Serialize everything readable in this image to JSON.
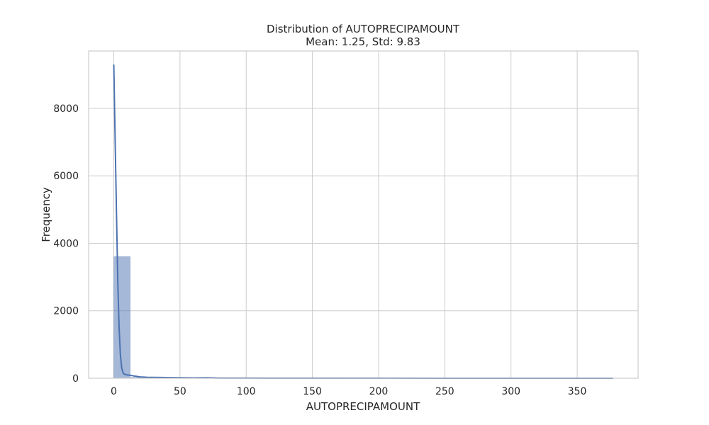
{
  "chart_data": {
    "type": "bar",
    "title": "Distribution of AUTOPRECIPAMOUNT",
    "subtitle": "Mean: 1.25, Std: 9.83",
    "xlabel": "AUTOPRECIPAMOUNT",
    "ylabel": "Frequency",
    "xlim": [
      -19,
      396
    ],
    "ylim": [
      0,
      9700
    ],
    "xticks": [
      0,
      50,
      100,
      150,
      200,
      250,
      300,
      350
    ],
    "yticks": [
      0,
      2000,
      4000,
      6000,
      8000
    ],
    "grid": true,
    "bar_color": "#4c72b0",
    "bar_opacity": 0.5,
    "bins": [
      {
        "x0": 0,
        "x1": 12.5,
        "count": 3610
      },
      {
        "x0": 12.5,
        "x1": 25,
        "count": 30
      },
      {
        "x0": 25,
        "x1": 37.5,
        "count": 12
      },
      {
        "x0": 37.5,
        "x1": 50,
        "count": 8
      },
      {
        "x0": 50,
        "x1": 62.5,
        "count": 6
      },
      {
        "x0": 62.5,
        "x1": 75,
        "count": 5
      },
      {
        "x0": 75,
        "x1": 87.5,
        "count": 3
      },
      {
        "x0": 87.5,
        "x1": 100,
        "count": 2
      },
      {
        "x0": 100,
        "x1": 112.5,
        "count": 2
      },
      {
        "x0": 112.5,
        "x1": 125,
        "count": 1
      },
      {
        "x0": 125,
        "x1": 137.5,
        "count": 1
      },
      {
        "x0": 137.5,
        "x1": 150,
        "count": 1
      },
      {
        "x0": 150,
        "x1": 162.5,
        "count": 1
      },
      {
        "x0": 162.5,
        "x1": 175,
        "count": 1
      },
      {
        "x0": 175,
        "x1": 187.5,
        "count": 0
      },
      {
        "x0": 187.5,
        "x1": 200,
        "count": 1
      },
      {
        "x0": 200,
        "x1": 212.5,
        "count": 0
      },
      {
        "x0": 212.5,
        "x1": 225,
        "count": 0
      },
      {
        "x0": 225,
        "x1": 237.5,
        "count": 1
      },
      {
        "x0": 237.5,
        "x1": 250,
        "count": 0
      },
      {
        "x0": 250,
        "x1": 262.5,
        "count": 0
      },
      {
        "x0": 262.5,
        "x1": 275,
        "count": 0
      },
      {
        "x0": 275,
        "x1": 287.5,
        "count": 0
      },
      {
        "x0": 287.5,
        "x1": 300,
        "count": 0
      },
      {
        "x0": 300,
        "x1": 312.5,
        "count": 0
      },
      {
        "x0": 312.5,
        "x1": 325,
        "count": 0
      },
      {
        "x0": 325,
        "x1": 337.5,
        "count": 0
      },
      {
        "x0": 337.5,
        "x1": 350,
        "count": 0
      },
      {
        "x0": 350,
        "x1": 362.5,
        "count": 0
      },
      {
        "x0": 362.5,
        "x1": 377,
        "count": 1
      }
    ],
    "kde": {
      "color": "#4c72b0",
      "points": [
        [
          0,
          9300
        ],
        [
          1,
          7200
        ],
        [
          2,
          5000
        ],
        [
          3,
          2900
        ],
        [
          4,
          1500
        ],
        [
          5,
          700
        ],
        [
          6,
          300
        ],
        [
          7,
          160
        ],
        [
          8,
          120
        ],
        [
          10,
          100
        ],
        [
          12,
          90
        ],
        [
          15,
          70
        ],
        [
          20,
          40
        ],
        [
          25,
          30
        ],
        [
          30,
          25
        ],
        [
          40,
          20
        ],
        [
          50,
          15
        ],
        [
          60,
          10
        ],
        [
          70,
          14
        ],
        [
          80,
          6
        ],
        [
          100,
          4
        ],
        [
          150,
          3
        ],
        [
          200,
          2
        ],
        [
          250,
          1
        ],
        [
          300,
          1
        ],
        [
          350,
          1
        ],
        [
          377,
          0
        ]
      ]
    }
  }
}
